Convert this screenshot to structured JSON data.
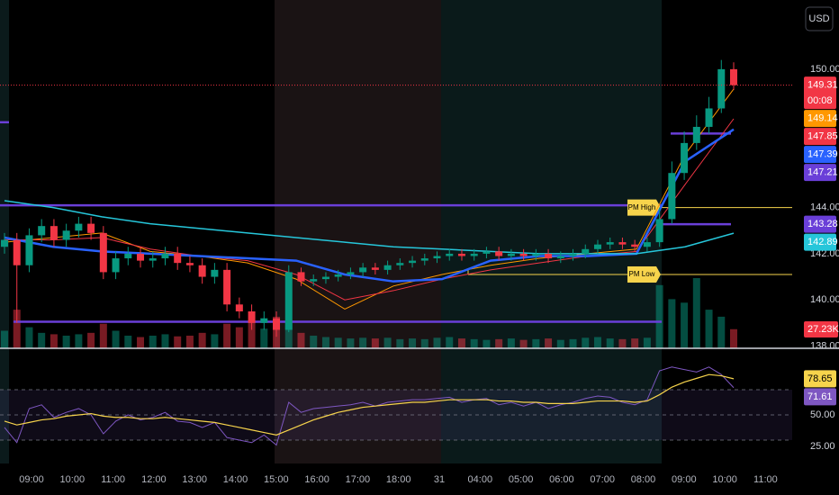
{
  "currency": "USD",
  "chart_data": {
    "type": "candlestick",
    "x_labels": [
      "09:00",
      "10:00",
      "11:00",
      "12:00",
      "13:00",
      "14:00",
      "15:00",
      "16:00",
      "17:00",
      "18:00",
      "31",
      "04:00",
      "05:00",
      "06:00",
      "07:00",
      "08:00",
      "09:00",
      "10:00",
      "11:00"
    ],
    "up_color": "#089981",
    "down_color": "#f23645",
    "ylim": [
      137.9,
      153
    ],
    "yticks": [
      {
        "value": 138,
        "label": "138.00"
      },
      {
        "value": 140,
        "label": "140.00"
      },
      {
        "value": 142,
        "label": "142.00"
      },
      {
        "value": 144,
        "label": "144.00"
      },
      {
        "value": 150,
        "label": "150.00"
      }
    ],
    "candles": [
      [
        142.3,
        142.9,
        142.0,
        142.6
      ],
      [
        142.6,
        142.9,
        139.0,
        141.5
      ],
      [
        141.5,
        143.1,
        141.2,
        142.8
      ],
      [
        142.8,
        143.5,
        142.5,
        143.2
      ],
      [
        143.2,
        143.5,
        142.3,
        142.6
      ],
      [
        142.6,
        143.3,
        142.3,
        143.0
      ],
      [
        143.0,
        143.6,
        142.7,
        143.3
      ],
      [
        143.3,
        143.6,
        142.6,
        142.9
      ],
      [
        142.9,
        143.2,
        140.9,
        141.2
      ],
      [
        141.2,
        142.1,
        140.9,
        141.8
      ],
      [
        141.8,
        142.3,
        141.5,
        142.0
      ],
      [
        142.0,
        142.3,
        141.4,
        141.7
      ],
      [
        141.7,
        142.1,
        141.4,
        141.8
      ],
      [
        141.8,
        142.3,
        141.5,
        142.0
      ],
      [
        142.0,
        142.3,
        141.3,
        141.6
      ],
      [
        141.6,
        141.9,
        141.2,
        141.5
      ],
      [
        141.5,
        141.8,
        140.7,
        141.0
      ],
      [
        141.0,
        141.6,
        140.7,
        141.3
      ],
      [
        141.3,
        141.6,
        139.5,
        139.8
      ],
      [
        139.8,
        140.1,
        139.2,
        139.5
      ],
      [
        139.5,
        139.8,
        138.7,
        139.0
      ],
      [
        139.0,
        139.5,
        138.7,
        139.2
      ],
      [
        139.2,
        139.5,
        138.4,
        138.7
      ],
      [
        138.7,
        141.5,
        138.6,
        141.2
      ],
      [
        141.2,
        141.4,
        140.6,
        140.8
      ],
      [
        140.8,
        141.1,
        140.6,
        140.9
      ],
      [
        140.9,
        141.2,
        140.7,
        141.0
      ],
      [
        141.0,
        141.3,
        140.8,
        141.1
      ],
      [
        141.1,
        141.4,
        140.9,
        141.2
      ],
      [
        141.2,
        141.6,
        141.0,
        141.4
      ],
      [
        141.4,
        141.6,
        141.1,
        141.3
      ],
      [
        141.3,
        141.7,
        141.1,
        141.5
      ],
      [
        141.5,
        141.8,
        141.3,
        141.6
      ],
      [
        141.6,
        141.9,
        141.4,
        141.7
      ],
      [
        141.7,
        142.0,
        141.5,
        141.8
      ],
      [
        141.8,
        142.1,
        141.6,
        141.9
      ],
      [
        141.9,
        142.2,
        141.7,
        142.0
      ],
      [
        142.0,
        142.2,
        141.7,
        141.9
      ],
      [
        141.9,
        142.2,
        141.7,
        142.0
      ],
      [
        142.0,
        142.3,
        141.8,
        142.1
      ],
      [
        142.1,
        142.3,
        141.7,
        141.9
      ],
      [
        141.9,
        142.2,
        141.7,
        142.0
      ],
      [
        142.0,
        142.2,
        141.7,
        141.9
      ],
      [
        141.9,
        142.2,
        141.7,
        142.0
      ],
      [
        142.0,
        142.2,
        141.6,
        141.8
      ],
      [
        141.8,
        142.1,
        141.6,
        141.9
      ],
      [
        141.9,
        142.2,
        141.7,
        142.0
      ],
      [
        142.0,
        142.4,
        141.8,
        142.2
      ],
      [
        142.2,
        142.6,
        142.0,
        142.4
      ],
      [
        142.4,
        142.7,
        142.2,
        142.5
      ],
      [
        142.5,
        142.7,
        142.2,
        142.4
      ],
      [
        142.4,
        142.6,
        142.1,
        142.3
      ],
      [
        142.3,
        142.7,
        142.1,
        142.5
      ],
      [
        142.5,
        144.0,
        142.3,
        143.5
      ],
      [
        143.5,
        146.0,
        143.3,
        145.5
      ],
      [
        145.5,
        147.3,
        145.2,
        146.8
      ],
      [
        146.8,
        148.0,
        146.5,
        147.5
      ],
      [
        147.5,
        148.8,
        147.2,
        148.3
      ],
      [
        148.3,
        150.4,
        148.1,
        150.0
      ],
      [
        150.0,
        150.3,
        149.1,
        149.31
      ]
    ],
    "countdown": "00:08",
    "overlays": [
      {
        "color": "#ff9800",
        "values": [
          142.5,
          142.7,
          142.9,
          142.1,
          141.9,
          141.6,
          140.9,
          139.6,
          140.6,
          141.1,
          141.5,
          141.8,
          142.0,
          142.2,
          146.3,
          149.14
        ]
      },
      {
        "color": "#f23645",
        "values": [
          142.6,
          142.6,
          142.7,
          142.2,
          141.9,
          141.7,
          141.1,
          140.0,
          140.4,
          140.9,
          141.3,
          141.6,
          141.9,
          142.1,
          145.0,
          147.85
        ]
      },
      {
        "color": "#2962ff",
        "values": [
          142.7,
          142.3,
          142.1,
          142.0,
          141.9,
          141.8,
          141.7,
          141.1,
          140.8,
          140.9,
          141.7,
          141.9,
          141.9,
          142.0,
          146.0,
          147.39
        ]
      },
      {
        "color": "#26c6da",
        "values": [
          144.3,
          144.0,
          143.6,
          143.3,
          143.1,
          142.9,
          142.7,
          142.5,
          142.3,
          142.2,
          142.1,
          142.0,
          142.0,
          142.0,
          142.3,
          142.89
        ]
      }
    ],
    "level_color": "#6a3fd8",
    "levels": [
      147.7,
      144.1,
      139.05,
      143.28,
      147.21
    ],
    "markers": [
      {
        "label": "PM High",
        "value": 144.0
      },
      {
        "label": "PM Low",
        "value": 141.1
      }
    ],
    "volume": {
      "ylim": [
        0,
        100
      ],
      "values": [
        25,
        55,
        30,
        22,
        20,
        18,
        20,
        22,
        35,
        25,
        18,
        16,
        18,
        20,
        17,
        18,
        22,
        20,
        35,
        30,
        40,
        28,
        45,
        40,
        22,
        18,
        16,
        15,
        14,
        15,
        14,
        15,
        13,
        14,
        13,
        15,
        16,
        14,
        13,
        12,
        13,
        14,
        12,
        13,
        14,
        12,
        13,
        15,
        16,
        14,
        13,
        14,
        15,
        90,
        70,
        65,
        100,
        55,
        45,
        27.23
      ],
      "last_value_label": "27.23K"
    },
    "rsi": {
      "ylim": [
        11.4,
        100.7
      ],
      "yticks": [
        {
          "value": 25,
          "label": "25.00"
        },
        {
          "value": 50,
          "label": "50.00"
        }
      ],
      "levels": [
        30,
        50,
        70
      ],
      "color": "#7e57c2",
      "ma_color": "#f7d44c",
      "values": [
        40,
        28,
        55,
        58,
        48,
        52,
        55,
        50,
        35,
        45,
        50,
        46,
        48,
        52,
        45,
        44,
        40,
        44,
        32,
        30,
        28,
        34,
        26,
        60,
        52,
        55,
        56,
        57,
        58,
        60,
        57,
        60,
        61,
        62,
        62,
        63,
        64,
        60,
        62,
        63,
        58,
        60,
        57,
        60,
        55,
        58,
        60,
        63,
        65,
        64,
        60,
        58,
        62,
        85,
        88,
        86,
        84,
        88,
        82,
        71.61
      ],
      "ma": [
        45,
        42,
        44,
        46,
        47,
        49,
        50,
        51,
        49,
        48,
        48,
        47,
        47,
        48,
        47,
        46,
        45,
        44,
        42,
        40,
        38,
        36,
        34,
        38,
        42,
        46,
        49,
        52,
        54,
        56,
        57,
        58,
        59,
        60,
        60,
        61,
        62,
        62,
        62,
        62,
        61,
        61,
        60,
        60,
        59,
        59,
        59,
        60,
        61,
        61,
        61,
        60,
        61,
        66,
        72,
        76,
        79,
        82,
        81,
        78.65
      ]
    }
  }
}
